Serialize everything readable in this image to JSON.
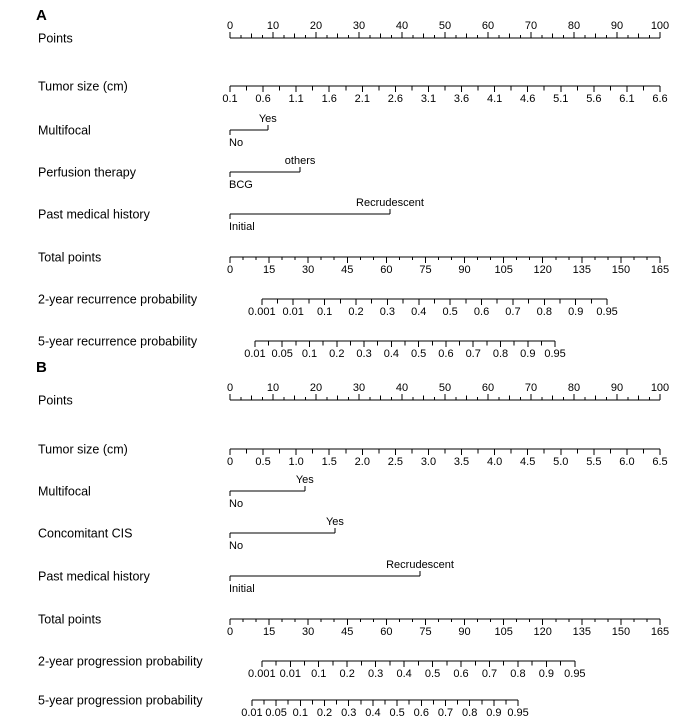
{
  "figure": {
    "background": "#ffffff",
    "axis_color": "#000000",
    "text_color": "#000000"
  },
  "chart_data": [
    {
      "type": "nomogram",
      "panel_label": "A",
      "rows": [
        {
          "label": "Points",
          "kind": "scale",
          "side": "above",
          "start": 0,
          "end": 1,
          "minor": 4,
          "ticks": [
            "0",
            "10",
            "20",
            "30",
            "40",
            "50",
            "60",
            "70",
            "80",
            "90",
            "100"
          ]
        },
        {
          "label": "Tumor size (cm)",
          "kind": "scale",
          "side": "below",
          "start": 0,
          "end": 1,
          "minor": 2,
          "ticks": [
            "0.1",
            "0.6",
            "1.1",
            "1.6",
            "2.1",
            "2.6",
            "3.1",
            "3.6",
            "4.1",
            "4.6",
            "5.1",
            "5.6",
            "6.1",
            "6.6"
          ]
        },
        {
          "label": "Multifocal",
          "kind": "binary",
          "start": 0,
          "end": 0.088,
          "low": "No",
          "high": "Yes"
        },
        {
          "label": "Perfusion therapy",
          "kind": "binary",
          "start": 0,
          "end": 0.163,
          "low": "BCG",
          "high": "others"
        },
        {
          "label": "Past medical history",
          "kind": "binary",
          "start": 0,
          "end": 0.372,
          "low": "Initial",
          "high": "Recrudescent"
        },
        {
          "label": "Total points",
          "kind": "scale",
          "side": "below",
          "start": 0,
          "end": 1,
          "minor": 3,
          "ticks": [
            "0",
            "15",
            "30",
            "45",
            "60",
            "75",
            "90",
            "105",
            "120",
            "135",
            "150",
            "165"
          ]
        },
        {
          "label": "2-year recurrence probability",
          "kind": "scale",
          "side": "below",
          "start": 0.074,
          "end": 0.877,
          "minor": 2,
          "ticks": [
            "0.001",
            "0.01",
            "0.1",
            "0.2",
            "0.3",
            "0.4",
            "0.5",
            "0.6",
            "0.7",
            "0.8",
            "0.9",
            "0.95"
          ]
        },
        {
          "label": "5-year recurrence probability",
          "kind": "scale",
          "side": "below",
          "start": 0.058,
          "end": 0.756,
          "minor": 2,
          "ticks": [
            "0.01",
            "0.05",
            "0.1",
            "0.2",
            "0.3",
            "0.4",
            "0.5",
            "0.6",
            "0.7",
            "0.8",
            "0.9",
            "0.95"
          ]
        }
      ]
    },
    {
      "type": "nomogram",
      "panel_label": "B",
      "rows": [
        {
          "label": "Points",
          "kind": "scale",
          "side": "above",
          "start": 0,
          "end": 1,
          "minor": 4,
          "ticks": [
            "0",
            "10",
            "20",
            "30",
            "40",
            "50",
            "60",
            "70",
            "80",
            "90",
            "100"
          ]
        },
        {
          "label": "Tumor size (cm)",
          "kind": "scale",
          "side": "below",
          "start": 0,
          "end": 1,
          "minor": 2,
          "ticks": [
            "0",
            "0.5",
            "1.0",
            "1.5",
            "2.0",
            "2.5",
            "3.0",
            "3.5",
            "4.0",
            "4.5",
            "5.0",
            "5.5",
            "6.0",
            "6.5"
          ]
        },
        {
          "label": "Multifocal",
          "kind": "binary",
          "start": 0,
          "end": 0.174,
          "low": "No",
          "high": "Yes"
        },
        {
          "label": "Concomitant CIS",
          "kind": "binary",
          "start": 0,
          "end": 0.244,
          "low": "No",
          "high": "Yes"
        },
        {
          "label": "Past medical history",
          "kind": "binary",
          "start": 0,
          "end": 0.442,
          "low": "Initial",
          "high": "Recrudescent"
        },
        {
          "label": "Total points",
          "kind": "scale",
          "side": "below",
          "start": 0,
          "end": 1,
          "minor": 3,
          "ticks": [
            "0",
            "15",
            "30",
            "45",
            "60",
            "75",
            "90",
            "105",
            "120",
            "135",
            "150",
            "165"
          ]
        },
        {
          "label": "2-year progression probability",
          "kind": "scale",
          "side": "below",
          "start": 0.074,
          "end": 0.802,
          "minor": 2,
          "ticks": [
            "0.001",
            "0.01",
            "0.1",
            "0.2",
            "0.3",
            "0.4",
            "0.5",
            "0.6",
            "0.7",
            "0.8",
            "0.9",
            "0.95"
          ]
        },
        {
          "label": "5-year progression probability",
          "kind": "scale",
          "side": "below",
          "start": 0.051,
          "end": 0.67,
          "minor": 2,
          "ticks": [
            "0.01",
            "0.05",
            "0.1",
            "0.2",
            "0.3",
            "0.4",
            "0.5",
            "0.6",
            "0.7",
            "0.8",
            "0.9",
            "0.95"
          ]
        }
      ]
    }
  ]
}
